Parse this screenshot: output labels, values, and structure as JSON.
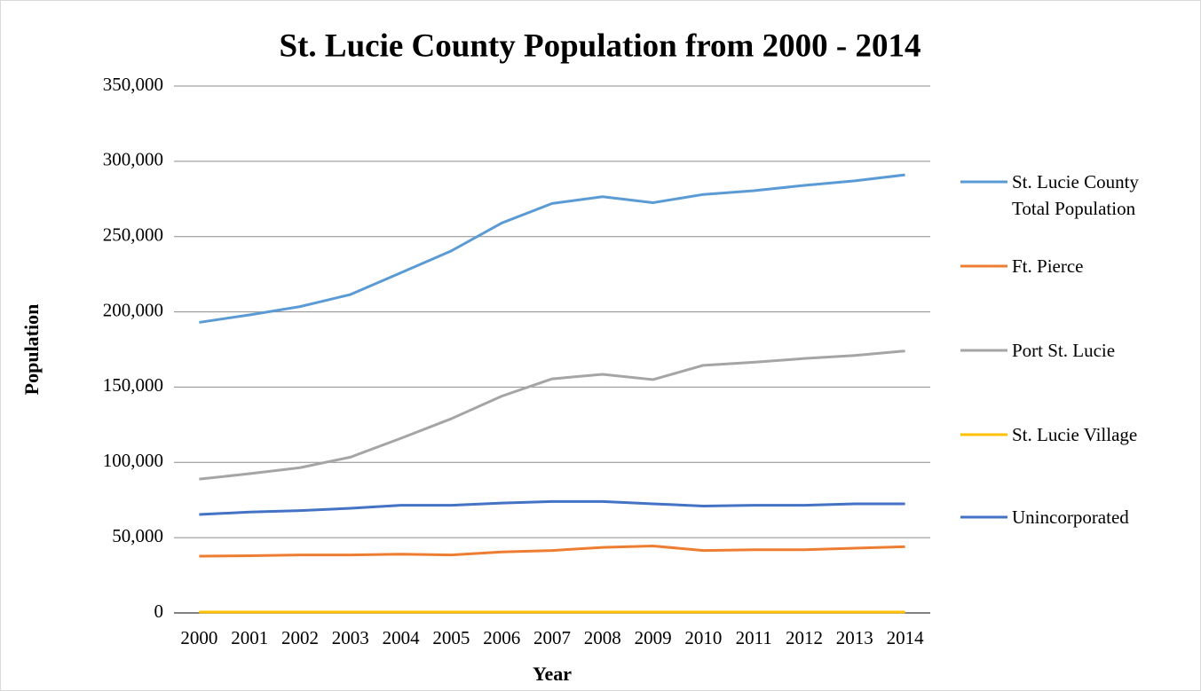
{
  "chart_data": {
    "type": "line",
    "title": "St. Lucie County Population from 2000 - 2014",
    "x_label": "Year",
    "y_label": "Population",
    "categories": [
      "2000",
      "2001",
      "2002",
      "2003",
      "2004",
      "2005",
      "2006",
      "2007",
      "2008",
      "2009",
      "2010",
      "2011",
      "2012",
      "2013",
      "2014"
    ],
    "series": [
      {
        "name": "St. Lucie County Total Population",
        "color": "#5b9bd5",
        "values": [
          193000,
          198000,
          203500,
          211500,
          226000,
          240500,
          259000,
          272000,
          276500,
          272500,
          278000,
          280500,
          284000,
          287000,
          291000
        ]
      },
      {
        "name": "Ft. Pierce",
        "color": "#ed7d31",
        "values": [
          37700,
          38000,
          38500,
          38500,
          39000,
          38500,
          40500,
          41500,
          43500,
          44500,
          41500,
          42000,
          42000,
          43000,
          44000
        ]
      },
      {
        "name": "Port St. Lucie",
        "color": "#a5a5a5",
        "values": [
          88900,
          92500,
          96500,
          103500,
          116000,
          129000,
          144000,
          155500,
          158500,
          155000,
          164500,
          166500,
          169000,
          171000,
          174000
        ]
      },
      {
        "name": "St. Lucie Village",
        "color": "#ffc000",
        "values": [
          600,
          600,
          600,
          600,
          600,
          600,
          600,
          600,
          600,
          600,
          600,
          600,
          600,
          600,
          600
        ]
      },
      {
        "name": "Unincorporated",
        "color": "#4472c4",
        "values": [
          65400,
          67000,
          68000,
          69500,
          71500,
          71500,
          73000,
          74000,
          74000,
          72500,
          71000,
          71500,
          71500,
          72500,
          72500
        ]
      }
    ],
    "ylim": [
      0,
      350000
    ],
    "yticks": [
      0,
      {
        "value": 50000,
        "label": "50,000"
      },
      {
        "value": 100000,
        "label": "100,000"
      },
      {
        "value": 150000,
        "label": "150,000"
      },
      {
        "value": 200000,
        "label": "200,000"
      },
      {
        "value": 250000,
        "label": "250,000"
      },
      {
        "value": 300000,
        "label": "300,000"
      },
      {
        "value": 350000,
        "label": "350,000"
      }
    ],
    "grid": true,
    "legend": "right"
  }
}
